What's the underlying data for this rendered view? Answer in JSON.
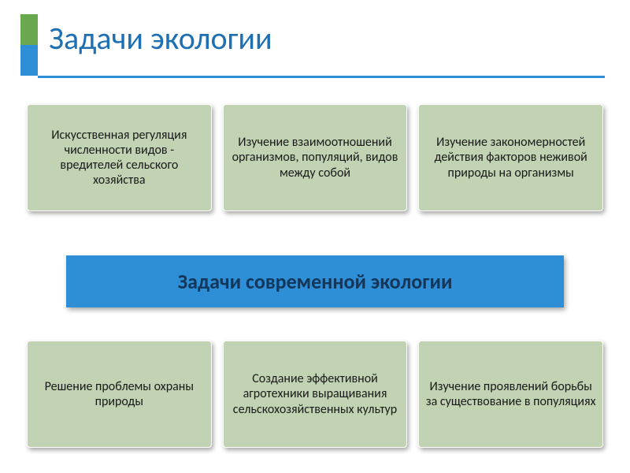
{
  "title": {
    "text": "Задачи экологии",
    "color": "#1f6fb3",
    "fontsize": 40
  },
  "accent": {
    "top_color": "#6aa84f",
    "bot_color": "#2f8fd6",
    "underline_color": "#2f8fd6"
  },
  "box_style": {
    "bg": "#c1d3b2",
    "border": "#ffffff",
    "text_color": "#1a1a1a",
    "fontsize": 16
  },
  "banner": {
    "text": "Задачи современной экологии",
    "bg": "#2f8fd6",
    "text_color": "#13365b",
    "fontsize": 26
  },
  "top_boxes": [
    "Искусственная регуляция численности видов - вредителей сельского хозяйства",
    "Изучение взаимоотношений организмов, популяций, видов между собой",
    "Изучение закономерностей действия факторов неживой природы на организмы"
  ],
  "bottom_boxes": [
    "Решение проблемы охраны природы",
    "Создание эффективной агротехники выращивания сельскохозяйственных культур",
    "Изучение проявлений борьбы за существование в популяциях"
  ]
}
